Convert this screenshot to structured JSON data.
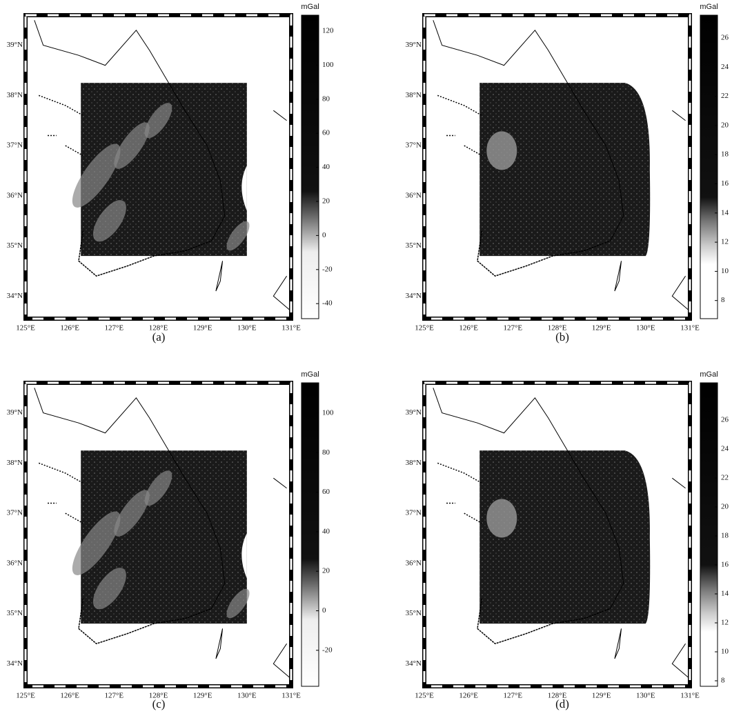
{
  "panels": [
    {
      "caption": "(a)",
      "unit": "mGal",
      "colorbar_ticks": [
        "120",
        "100",
        "80",
        "60",
        "40",
        "20",
        "0",
        "-20",
        "-40"
      ],
      "lat_labels": [
        "39°N",
        "38°N",
        "37°N",
        "36°N",
        "35°N",
        "34°N"
      ],
      "lon_labels": [
        "125°E",
        "126°E",
        "127°E",
        "128°E",
        "129°E",
        "130°E",
        "131°E"
      ]
    },
    {
      "caption": "(b)",
      "unit": "mGal",
      "colorbar_ticks": [
        "26",
        "24",
        "22",
        "20",
        "18",
        "16",
        "14",
        "12",
        "10",
        "8"
      ],
      "lat_labels": [
        "39°N",
        "38°N",
        "37°N",
        "36°N",
        "35°N",
        "34°N"
      ],
      "lon_labels": [
        "125°E",
        "126°E",
        "127°E",
        "128°E",
        "129°E",
        "130°E",
        "131°E"
      ]
    },
    {
      "caption": "(c)",
      "unit": "mGal",
      "colorbar_ticks": [
        "100",
        "80",
        "60",
        "40",
        "20",
        "0",
        "-20"
      ],
      "lat_labels": [
        "39°N",
        "38°N",
        "37°N",
        "36°N",
        "35°N",
        "34°N"
      ],
      "lon_labels": [
        "125°E",
        "126°E",
        "127°E",
        "128°E",
        "129°E",
        "130°E",
        "131°E"
      ]
    },
    {
      "caption": "(d)",
      "unit": "mGal",
      "colorbar_ticks": [
        "26",
        "24",
        "22",
        "20",
        "18",
        "16",
        "14",
        "12",
        "10",
        "8"
      ],
      "lat_labels": [
        "39°N",
        "38°N",
        "37°N",
        "36°N",
        "35°N",
        "34°N"
      ],
      "lon_labels": [
        "125°E",
        "126°E",
        "127°E",
        "128°E",
        "129°E",
        "130°E",
        "131°E"
      ]
    }
  ]
}
